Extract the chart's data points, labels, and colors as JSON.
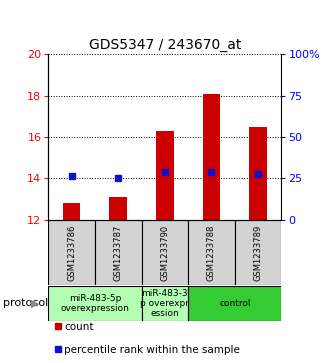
{
  "title": "GDS5347 / 243670_at",
  "samples": [
    "GSM1233786",
    "GSM1233787",
    "GSM1233790",
    "GSM1233788",
    "GSM1233789"
  ],
  "red_values": [
    12.8,
    13.1,
    16.3,
    18.1,
    16.5
  ],
  "blue_values": [
    14.1,
    14.0,
    14.3,
    14.3,
    14.2
  ],
  "y_min": 12,
  "y_max": 20,
  "y_ticks": [
    12,
    14,
    16,
    18,
    20
  ],
  "y2_ticks": [
    0,
    25,
    50,
    75,
    100
  ],
  "y2_tick_labels": [
    "0",
    "25",
    "50",
    "75",
    "100%"
  ],
  "bar_color": "#cc0000",
  "dot_color": "#1111cc",
  "grid_color": "#000000",
  "groups": [
    {
      "label": "miR-483-5p\noverexpression",
      "start": 0,
      "end": 1,
      "color": "#b3ffb3"
    },
    {
      "label": "miR-483-3\np overexpr\nession",
      "start": 2,
      "end": 2,
      "color": "#b3ffb3"
    },
    {
      "label": "control",
      "start": 3,
      "end": 4,
      "color": "#33cc33"
    }
  ],
  "protocol_label": "protocol",
  "legend_count": "count",
  "legend_percentile": "percentile rank within the sample",
  "title_fontsize": 10,
  "tick_fontsize": 8,
  "sample_fontsize": 6,
  "group_fontsize": 6.5,
  "legend_fontsize": 7.5,
  "bar_width": 0.38
}
